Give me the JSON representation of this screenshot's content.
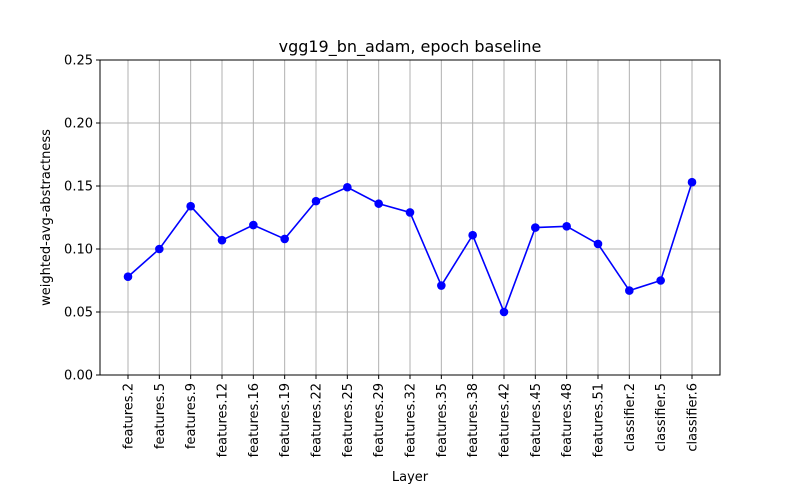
{
  "chart_data": {
    "type": "line",
    "title": "vgg19_bn_adam, epoch baseline",
    "xlabel": "Layer",
    "ylabel": "weighted-avg-abstractness",
    "categories": [
      "features.2",
      "features.5",
      "features.9",
      "features.12",
      "features.16",
      "features.19",
      "features.22",
      "features.25",
      "features.29",
      "features.32",
      "features.35",
      "features.38",
      "features.42",
      "features.45",
      "features.48",
      "features.51",
      "classifier.2",
      "classifier.5",
      "classifier.6"
    ],
    "series": [
      {
        "values": [
          0.078,
          0.1,
          0.134,
          0.107,
          0.119,
          0.108,
          0.138,
          0.149,
          0.136,
          0.129,
          0.071,
          0.111,
          0.05,
          0.117,
          0.118,
          0.104,
          0.067,
          0.075,
          0.153
        ],
        "color": "#0000ff",
        "marker": "circle"
      }
    ],
    "yticks": [
      "0.00",
      "0.05",
      "0.10",
      "0.15",
      "0.20",
      "0.25"
    ],
    "ylim": [
      0,
      0.25
    ],
    "grid": true
  }
}
